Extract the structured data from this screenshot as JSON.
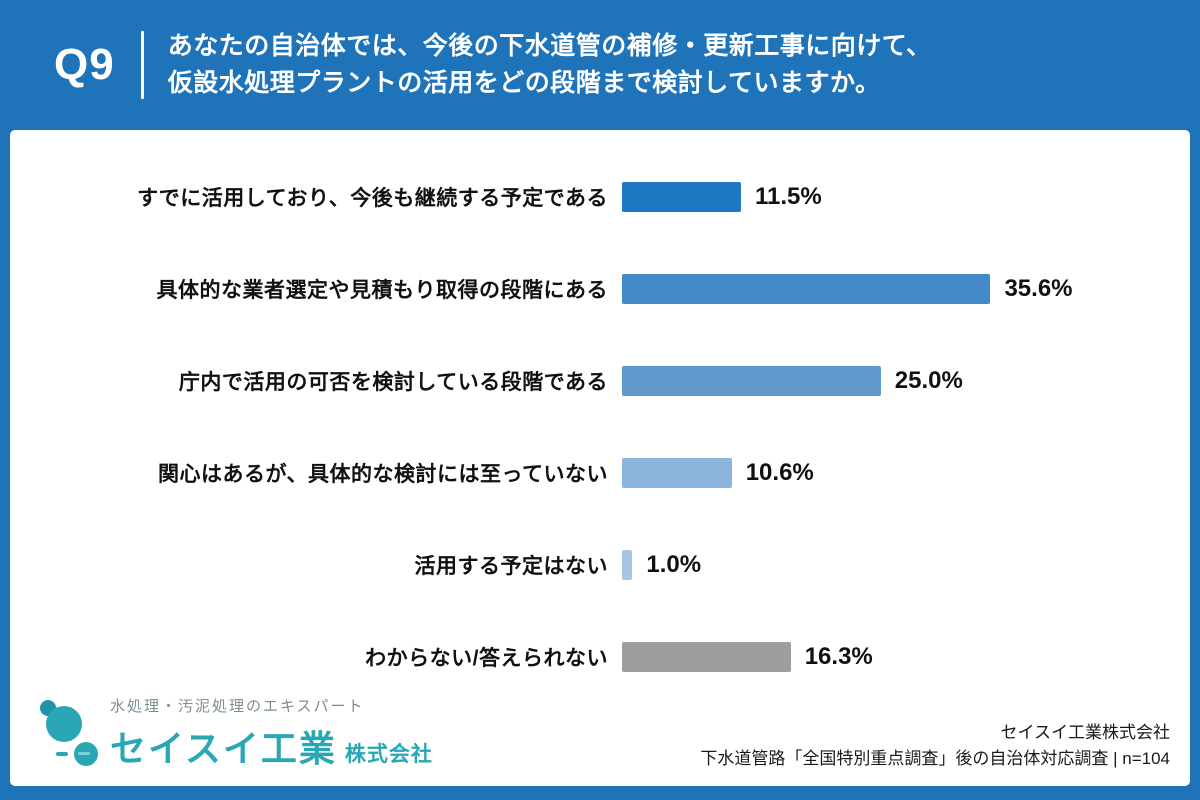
{
  "header": {
    "question_number": "Q9",
    "question_line1": "あなたの自治体では、今後の下水道管の補修・更新工事に向けて、",
    "question_line2": "仮設水処理プラントの活用をどの段階まで検討していますか。"
  },
  "chart_data": {
    "type": "bar",
    "orientation": "horizontal",
    "title": "",
    "categories": [
      "すでに活用しており、今後も継続する予定である",
      "具体的な業者選定や見積もり取得の段階にある",
      "庁内で活用の可否を検討している段階である",
      "関心はあるが、具体的な検討には至っていない",
      "活用する予定はない",
      "わからない/答えられない"
    ],
    "values": [
      11.5,
      35.6,
      25.0,
      10.6,
      1.0,
      16.3
    ],
    "value_labels": [
      "11.5%",
      "35.6%",
      "25.0%",
      "10.6%",
      "1.0%",
      "16.3%"
    ],
    "bar_colors": [
      "#1f78c4",
      "#4489c8",
      "#6299cd",
      "#8cb4dc",
      "#a5c6e3",
      "#9e9e9e"
    ],
    "unit": "%",
    "xlim": [
      0,
      40
    ],
    "grid": false,
    "legend": "none",
    "sample_size": "n=104"
  },
  "footer": {
    "logo_tagline": "水処理・汚泥処理のエキスパート",
    "logo_name": "セイスイ工業",
    "logo_suffix": "株式会社",
    "source_line1": "セイスイ工業株式会社",
    "source_line2": "下水道管路「全国特別重点調査」後の自治体対応調査 | n=104"
  },
  "colors": {
    "background_blue": "#1e73b9",
    "card_white": "#ffffff",
    "logo_teal": "#2aa7b4",
    "label_black": "#111111"
  }
}
